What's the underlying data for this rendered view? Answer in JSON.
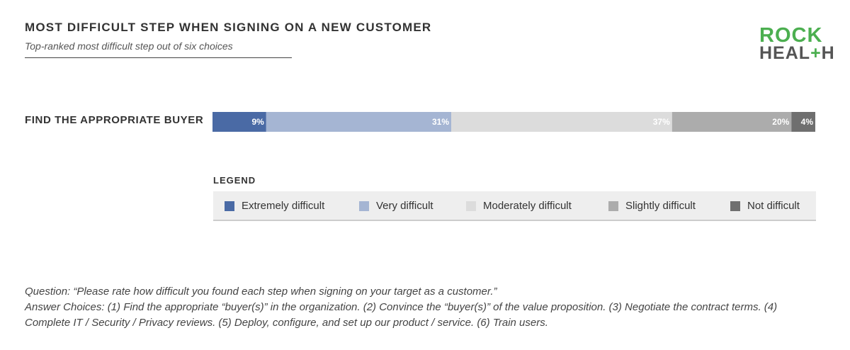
{
  "header": {
    "title": "MOST DIFFICULT STEP WHEN SIGNING ON A NEW CUSTOMER",
    "subtitle": "Top-ranked most difficult step out of six choices"
  },
  "logo": {
    "line1": "ROCK",
    "line2_a": "HEAL",
    "line2_plus": "+",
    "line2_b": "H"
  },
  "chart_data": {
    "type": "bar",
    "orientation": "horizontal-stacked-100",
    "categories": [
      "FIND THE APPROPRIATE BUYER"
    ],
    "xlim": [
      0,
      100
    ],
    "series": [
      {
        "name": "Extremely difficult",
        "values": [
          9
        ],
        "label": "9%",
        "color": "#4a6aa5",
        "label_color": "#ffffff"
      },
      {
        "name": "Very difficult",
        "values": [
          31
        ],
        "label": "31%",
        "color": "#a5b5d3",
        "label_color": "#ffffff"
      },
      {
        "name": "Moderately difficult",
        "values": [
          37
        ],
        "label": "37%",
        "color": "#dcdcdc",
        "label_color": "#ffffff"
      },
      {
        "name": "Slightly difficult",
        "values": [
          20
        ],
        "label": "20%",
        "color": "#acacac",
        "label_color": "#ffffff"
      },
      {
        "name": "Not difficult",
        "values": [
          4
        ],
        "label": "4%",
        "color": "#6f6f6f",
        "label_color": "#ffffff"
      }
    ]
  },
  "legend": {
    "title": "LEGEND",
    "items": [
      {
        "label": "Extremely difficult",
        "color": "#4a6aa5"
      },
      {
        "label": "Very difficult",
        "color": "#a5b5d3"
      },
      {
        "label": "Moderately difficult",
        "color": "#dcdcdc"
      },
      {
        "label": "Slightly difficult",
        "color": "#acacac"
      },
      {
        "label": "Not difficult",
        "color": "#6f6f6f"
      }
    ]
  },
  "footnotes": {
    "question": "Question: “Please rate how difficult you found each step when signing on your target as a customer.”",
    "answers": "Answer Choices: (1) Find the appropriate “buyer(s)” in the organization. (2) Convince the “buyer(s)” of the value proposition. (3) Negotiate the contract terms. (4) Complete IT / Security / Privacy reviews. (5) Deploy, configure, and set up our product / service. (6) Train users."
  }
}
